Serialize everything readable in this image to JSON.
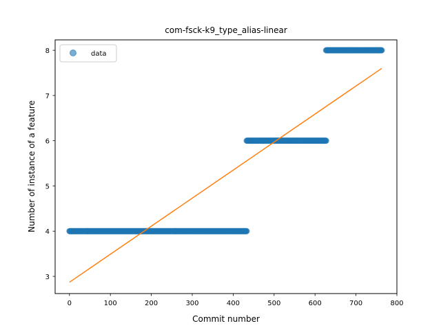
{
  "chart_data": {
    "type": "scatter",
    "title": "com-fsck-k9_type_alias-linear",
    "xlabel": "Commit number",
    "ylabel": "Number of instance of a feature",
    "xlim": [
      -35,
      800
    ],
    "ylim": [
      2.62,
      8.23
    ],
    "xticks": [
      0,
      100,
      200,
      300,
      400,
      500,
      600,
      700,
      800
    ],
    "yticks": [
      3,
      4,
      5,
      6,
      7,
      8
    ],
    "grid": false,
    "legend": {
      "placement": "top-left",
      "entries": [
        "data"
      ]
    },
    "colors": {
      "data": "#1f77b4",
      "fit": "#ff7f0e"
    },
    "series": [
      {
        "name": "data",
        "kind": "scatter",
        "segments": [
          {
            "x_start": 0,
            "x_end": 433,
            "y": 4
          },
          {
            "x_start": 433,
            "x_end": 627,
            "y": 6
          },
          {
            "x_start": 627,
            "x_end": 763,
            "y": 8
          }
        ]
      },
      {
        "kind": "line",
        "x": [
          0,
          763
        ],
        "y": [
          2.87,
          7.6
        ]
      }
    ]
  }
}
